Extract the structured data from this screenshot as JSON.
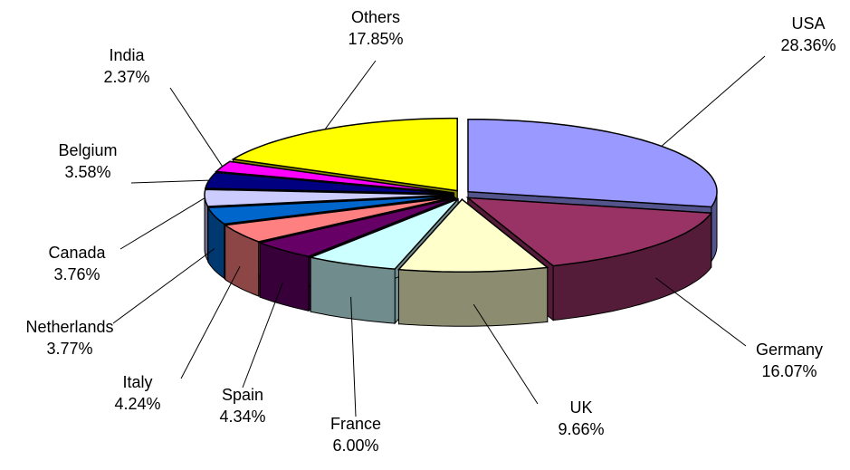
{
  "chart_data": {
    "type": "pie3d",
    "categories": [
      "USA",
      "Germany",
      "UK",
      "France",
      "Spain",
      "Italy",
      "Netherlands",
      "Canada",
      "Belgium",
      "India",
      "Others"
    ],
    "values": [
      28.36,
      16.07,
      9.66,
      6.0,
      4.34,
      4.24,
      3.77,
      3.76,
      3.58,
      2.37,
      17.85
    ],
    "value_labels": [
      "28.36%",
      "16.07%",
      "9.66%",
      "6.00%",
      "4.34%",
      "4.24%",
      "3.77%",
      "3.76%",
      "3.58%",
      "2.37%",
      "17.85%"
    ],
    "colors": [
      "#9999ff",
      "#993366",
      "#ffffcc",
      "#ccffff",
      "#660066",
      "#ff8080",
      "#0066cc",
      "#ccccff",
      "#000080",
      "#ff00ff",
      "#ffff00"
    ]
  }
}
